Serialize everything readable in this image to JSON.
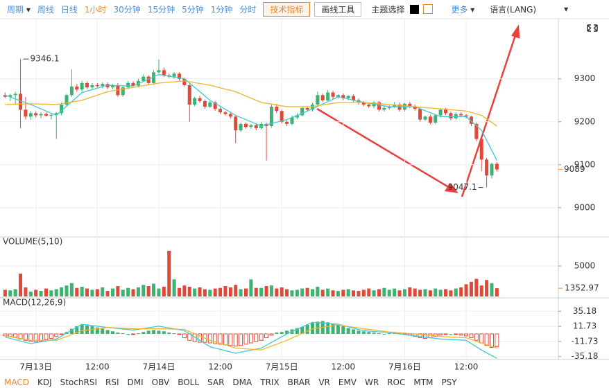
{
  "toolbar": {
    "period": "周期",
    "items": [
      "周线",
      "日线",
      "1小时",
      "30分钟",
      "15分钟",
      "5分钟",
      "1分钟",
      "分时"
    ],
    "active": 2,
    "indicator_button": "技术指标",
    "drawing_button": "画线工具",
    "theme": "主题选择",
    "more": "更多",
    "language": "语言(LANG)"
  },
  "chart_data": {
    "type": "candlestick",
    "open": [
      9262,
      9258,
      9262,
      9265,
      9228,
      9212,
      9220,
      9215,
      9218,
      9214,
      9216,
      9220,
      9240,
      9262,
      9282,
      9275,
      9290,
      9280,
      9285,
      9283,
      9288,
      9280,
      9285,
      9262,
      9280,
      9290,
      9284,
      9295,
      9305,
      9290,
      9315,
      9320,
      9308,
      9305,
      9312,
      9300,
      9285,
      9240,
      9255,
      9248,
      9235,
      9245,
      9230,
      9222,
      9218,
      9212,
      9180,
      9195,
      9188,
      9192,
      9185,
      9195,
      9190,
      9235,
      9225,
      9200,
      9195,
      9210,
      9215,
      9232,
      9228,
      9240,
      9262,
      9250,
      9268,
      9258,
      9262,
      9255,
      9260,
      9250,
      9245,
      9240,
      9236,
      9245,
      9228,
      9232,
      9235,
      9240,
      9228,
      9242,
      9236,
      9230,
      9205,
      9212,
      9198,
      9215,
      9228,
      9220,
      9208,
      9218,
      9215,
      9212,
      9195,
      9160,
      9112,
      9075,
      9102
    ],
    "high": [
      9268,
      9265,
      9270,
      9346.1,
      9258,
      9225,
      9224,
      9222,
      9222,
      9220,
      9222,
      9245,
      9265,
      9322,
      9288,
      9295,
      9294,
      9290,
      9290,
      9292,
      9292,
      9288,
      9290,
      9284,
      9295,
      9294,
      9300,
      9310,
      9308,
      9320,
      9345,
      9326,
      9312,
      9316,
      9315,
      9303,
      9288,
      9258,
      9260,
      9252,
      9248,
      9248,
      9234,
      9226,
      9222,
      9215,
      9198,
      9198,
      9195,
      9196,
      9200,
      9198,
      9240,
      9242,
      9228,
      9204,
      9214,
      9220,
      9236,
      9236,
      9244,
      9270,
      9266,
      9274,
      9272,
      9264,
      9266,
      9262,
      9264,
      9254,
      9248,
      9244,
      9248,
      9248,
      9236,
      9238,
      9246,
      9245,
      9244,
      9246,
      9240,
      9233,
      9214,
      9216,
      9218,
      9232,
      9232,
      9224,
      9222,
      9222,
      9218,
      9214,
      9198,
      9164,
      9116,
      9105,
      9106
    ],
    "low": [
      9255,
      9248,
      9240,
      9185,
      9205,
      9205,
      9210,
      9208,
      9212,
      9205,
      9160,
      9215,
      9236,
      9258,
      9270,
      9270,
      9276,
      9276,
      9280,
      9278,
      9276,
      9276,
      9258,
      9258,
      9276,
      9282,
      9280,
      9292,
      9286,
      9286,
      9312,
      9304,
      9302,
      9300,
      9296,
      9282,
      9200,
      9236,
      9244,
      9230,
      9232,
      9226,
      9218,
      9214,
      9208,
      9150,
      9176,
      9184,
      9184,
      9180,
      9182,
      9110,
      9186,
      9220,
      9196,
      9190,
      9192,
      9206,
      9212,
      9224,
      9224,
      9236,
      9246,
      9246,
      9252,
      9254,
      9250,
      9250,
      9246,
      9240,
      9236,
      9232,
      9232,
      9224,
      9224,
      9228,
      9232,
      9224,
      9224,
      9232,
      9226,
      9200,
      9202,
      9194,
      9194,
      9210,
      9216,
      9204,
      9204,
      9210,
      9208,
      9190,
      9155,
      9085,
      9047.1,
      9068,
      9084
    ],
    "close": [
      9258,
      9262,
      9265,
      9228,
      9212,
      9220,
      9215,
      9218,
      9214,
      9216,
      9220,
      9240,
      9262,
      9282,
      9275,
      9290,
      9280,
      9285,
      9283,
      9288,
      9280,
      9285,
      9262,
      9280,
      9290,
      9284,
      9295,
      9305,
      9290,
      9315,
      9320,
      9308,
      9305,
      9312,
      9300,
      9285,
      9240,
      9255,
      9248,
      9235,
      9245,
      9230,
      9222,
      9218,
      9212,
      9180,
      9195,
      9188,
      9192,
      9185,
      9195,
      9190,
      9235,
      9225,
      9200,
      9195,
      9210,
      9215,
      9232,
      9228,
      9240,
      9262,
      9250,
      9268,
      9258,
      9262,
      9255,
      9260,
      9250,
      9245,
      9240,
      9236,
      9245,
      9228,
      9232,
      9235,
      9240,
      9228,
      9242,
      9236,
      9230,
      9205,
      9212,
      9198,
      9215,
      9228,
      9220,
      9208,
      9218,
      9215,
      9212,
      9195,
      9160,
      9112,
      9075,
      9102,
      9089
    ],
    "up_color": "#3cb371",
    "down_color": "#e0493a",
    "ylim": [
      8932,
      9435
    ],
    "yticks": [
      9000,
      9100,
      9200,
      9300
    ],
    "xlim": [
      -1,
      108
    ],
    "xticks": [
      {
        "value": 6,
        "label": "7月13日"
      },
      {
        "value": 18,
        "label": "12:00"
      },
      {
        "value": 30,
        "label": "7月14日"
      },
      {
        "value": 42,
        "label": "12:00"
      },
      {
        "value": 54,
        "label": "7月15日"
      },
      {
        "value": 66,
        "label": "12:00"
      },
      {
        "value": 78,
        "label": "7月16日"
      },
      {
        "value": 90,
        "label": "12:00"
      }
    ],
    "ma_series": [
      {
        "color": "#3fc9d4",
        "x": [
          0,
          5,
          10,
          15,
          20,
          25,
          30,
          35,
          40,
          45,
          50,
          55,
          60,
          65,
          70,
          75,
          80,
          85,
          90,
          93,
          96
        ],
        "values": [
          9262,
          9240,
          9215,
          9268,
          9285,
          9283,
          9310,
          9300,
          9250,
          9215,
          9190,
          9205,
          9230,
          9258,
          9245,
          9235,
          9235,
          9212,
          9212,
          9180,
          9110
        ]
      },
      {
        "color": "#f0b429",
        "x": [
          0,
          5,
          10,
          15,
          20,
          25,
          30,
          35,
          40,
          45,
          50,
          55,
          60,
          65,
          70,
          75,
          80,
          85,
          90,
          93,
          96
        ],
        "values": [
          9240,
          9242,
          9240,
          9250,
          9270,
          9280,
          9290,
          9295,
          9285,
          9270,
          9245,
          9235,
          9235,
          9245,
          9245,
          9240,
          9235,
          9230,
          9225,
          9215,
          9190
        ]
      }
    ],
    "volume_title": "VOLUME(5,10)",
    "volume": [
      1100,
      1000,
      1200,
      3750,
      1500,
      800,
      1100,
      900,
      1300,
      1000,
      1200,
      1500,
      1800,
      2200,
      1400,
      1600,
      1300,
      1100,
      1200,
      1500,
      900,
      1300,
      1700,
      1100,
      1400,
      1200,
      1500,
      1900,
      1700,
      2100,
      1300,
      1600,
      7500,
      2800,
      1400,
      1800,
      1600,
      1300,
      1500,
      1200,
      1100,
      1300,
      1400,
      1700,
      1500,
      1900,
      1200,
      1300,
      2800,
      1400,
      1400,
      1700,
      1800,
      1300,
      1500,
      1200,
      1000,
      1100,
      1300,
      1400,
      1200,
      1600,
      1100,
      1300,
      1000,
      900,
      1100,
      1200,
      1000,
      900,
      1100,
      1300,
      1000,
      1200,
      1400,
      1100,
      1300,
      1000,
      1200,
      1500,
      1300,
      1100,
      1200,
      1000,
      1300,
      1100,
      1200,
      1000,
      1300,
      1500,
      2000,
      2400,
      2900,
      1800,
      2700,
      2200,
      1352.97
    ],
    "volume_ylim": [
      0,
      9430
    ],
    "volume_yticks": [
      5000
    ],
    "macd_title": "MACD(12,26,9)",
    "macd_hist": [
      -3,
      -4,
      -5,
      -8,
      -10,
      -12,
      -12,
      -11,
      -9,
      -7,
      -4,
      -1,
      3,
      8,
      12,
      14,
      13,
      12,
      10,
      8,
      6,
      4,
      2,
      1,
      0,
      -1,
      1,
      3,
      5,
      6,
      5,
      4,
      2,
      1,
      -1,
      -6,
      -10,
      -12,
      -13,
      -13,
      -14,
      -15,
      -16,
      -17,
      -18,
      -19,
      -18,
      -16,
      -14,
      -12,
      -10,
      -6,
      -2,
      2,
      3,
      5,
      7,
      9,
      11,
      14,
      17,
      19,
      20,
      18,
      16,
      14,
      12,
      9,
      7,
      5,
      4,
      3,
      2,
      1,
      0,
      1,
      2,
      1,
      -1,
      -2,
      -4,
      -6,
      -7,
      -6,
      -4,
      -2,
      -1,
      0,
      -1,
      -2,
      -3,
      -6,
      -10,
      -14,
      -18,
      -21,
      -20
    ],
    "macd_lines": [
      {
        "color": "#3fc9d4",
        "x": [
          0,
          5,
          10,
          15,
          20,
          25,
          30,
          35,
          40,
          45,
          50,
          55,
          60,
          65,
          70,
          75,
          80,
          85,
          90,
          93,
          96
        ],
        "values": [
          -5,
          -15,
          -8,
          15,
          10,
          6,
          12,
          5,
          -20,
          -30,
          -22,
          0,
          18,
          15,
          5,
          2,
          -3,
          -8,
          -10,
          -25,
          -38
        ]
      },
      {
        "color": "#f0b429",
        "x": [
          0,
          5,
          10,
          15,
          20,
          25,
          30,
          35,
          40,
          45,
          50,
          55,
          60,
          65,
          70,
          75,
          80,
          85,
          90,
          93,
          96
        ],
        "values": [
          -3,
          -10,
          -10,
          5,
          10,
          8,
          8,
          7,
          -10,
          -22,
          -25,
          -10,
          8,
          14,
          8,
          3,
          0,
          -4,
          -6,
          -14,
          -22
        ]
      }
    ],
    "macd_ylim": [
      -38.7,
      52.7
    ],
    "macd_yticks": [
      35.18,
      11.73,
      -11.73,
      -35.18
    ],
    "last_color": "#e8892b"
  },
  "indicator_tabs": [
    "MACD",
    "KDJ",
    "StochRSI",
    "RSI",
    "DMI",
    "OBV",
    "BOLL",
    "SAR",
    "DMA",
    "TRIX",
    "BRAR",
    "VR",
    "EMV",
    "WR",
    "ROC",
    "MTM",
    "PSY"
  ],
  "active_tab": 0
}
